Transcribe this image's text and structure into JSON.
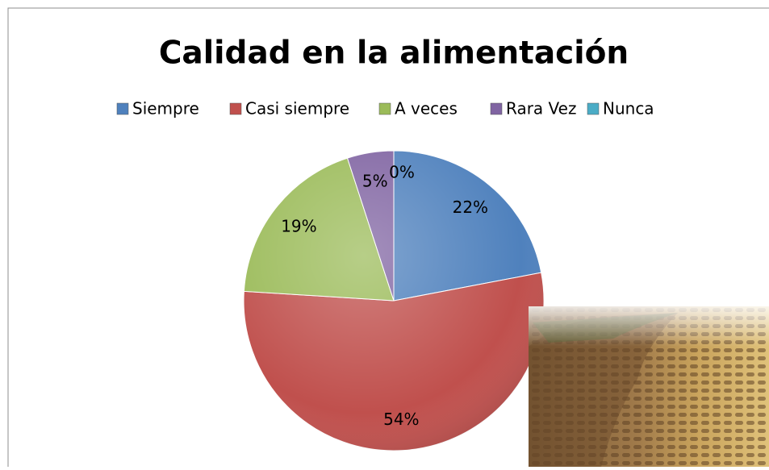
{
  "chart_data": {
    "type": "pie",
    "title": "Calidad en la alimentación",
    "categories": [
      "Siempre",
      "Casi siempre",
      "A veces",
      "Rara Vez",
      "Nunca"
    ],
    "values": [
      22,
      54,
      19,
      5,
      0
    ],
    "value_labels": [
      "22%",
      "54%",
      "19%",
      "5%",
      "0%"
    ],
    "colors": [
      "#4f81bd",
      "#c0504d",
      "#9bbb59",
      "#8064a2",
      "#4bacc6"
    ],
    "legend": "top"
  }
}
